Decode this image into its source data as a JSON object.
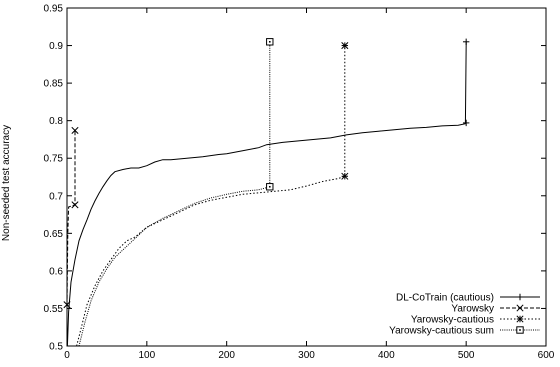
{
  "chart_data": {
    "type": "line",
    "title": "",
    "xlabel": "",
    "ylabel": "Non-seeded test accuracy",
    "xlim": [
      0,
      600
    ],
    "ylim": [
      0.5,
      0.95
    ],
    "x_ticks": [
      0,
      100,
      200,
      300,
      400,
      500,
      600
    ],
    "y_ticks": [
      0.5,
      0.55,
      0.6,
      0.65,
      0.7,
      0.75,
      0.8,
      0.85,
      0.9,
      0.95
    ],
    "x_tick_labels": [
      "0",
      "100",
      "200",
      "300",
      "400",
      "500",
      "600"
    ],
    "y_tick_labels": [
      "0.5",
      "0.55",
      "0.6",
      "0.65",
      "0.7",
      "0.75",
      "0.8",
      "0.85",
      "0.9",
      "0.95"
    ],
    "grid": false,
    "legend_position": "bottom-right",
    "series": [
      {
        "name": "DL-CoTrain (cautious)",
        "dash": "solid",
        "marker": "plus",
        "points": [
          [
            0.5,
            0.5
          ],
          [
            2,
            0.545
          ],
          [
            5,
            0.585
          ],
          [
            10,
            0.615
          ],
          [
            15,
            0.64
          ],
          [
            20,
            0.655
          ],
          [
            25,
            0.668
          ],
          [
            30,
            0.682
          ],
          [
            35,
            0.693
          ],
          [
            40,
            0.703
          ],
          [
            45,
            0.712
          ],
          [
            50,
            0.72
          ],
          [
            55,
            0.727
          ],
          [
            60,
            0.732
          ],
          [
            70,
            0.735
          ],
          [
            80,
            0.737
          ],
          [
            90,
            0.737
          ],
          [
            100,
            0.74
          ],
          [
            110,
            0.745
          ],
          [
            120,
            0.748
          ],
          [
            130,
            0.748
          ],
          [
            140,
            0.749
          ],
          [
            150,
            0.75
          ],
          [
            170,
            0.752
          ],
          [
            190,
            0.755
          ],
          [
            200,
            0.756
          ],
          [
            220,
            0.76
          ],
          [
            240,
            0.764
          ],
          [
            250,
            0.768
          ],
          [
            270,
            0.771
          ],
          [
            290,
            0.773
          ],
          [
            310,
            0.775
          ],
          [
            330,
            0.777
          ],
          [
            350,
            0.781
          ],
          [
            370,
            0.784
          ],
          [
            390,
            0.786
          ],
          [
            410,
            0.788
          ],
          [
            430,
            0.79
          ],
          [
            450,
            0.791
          ],
          [
            470,
            0.793
          ],
          [
            490,
            0.794
          ],
          [
            499,
            0.796
          ],
          [
            500,
            0.905
          ]
        ],
        "end_markers": [
          [
            500,
            0.797
          ],
          [
            500,
            0.905
          ]
        ]
      },
      {
        "name": "Yarowsky",
        "dash": "dashed",
        "marker": "x",
        "points": [
          [
            0,
            0.555
          ],
          [
            1,
            0.65
          ],
          [
            2,
            0.685
          ],
          [
            10,
            0.688
          ],
          [
            10,
            0.787
          ]
        ],
        "end_markers": [
          [
            0,
            0.555
          ],
          [
            10,
            0.688
          ],
          [
            10,
            0.787
          ]
        ]
      },
      {
        "name": "Yarowsky-cautious",
        "dash": "dotted",
        "marker": "star",
        "points": [
          [
            12,
            0.5
          ],
          [
            18,
            0.525
          ],
          [
            25,
            0.555
          ],
          [
            35,
            0.58
          ],
          [
            45,
            0.6
          ],
          [
            55,
            0.615
          ],
          [
            65,
            0.63
          ],
          [
            75,
            0.64
          ],
          [
            85,
            0.645
          ],
          [
            100,
            0.658
          ],
          [
            120,
            0.668
          ],
          [
            140,
            0.678
          ],
          [
            160,
            0.688
          ],
          [
            180,
            0.694
          ],
          [
            200,
            0.698
          ],
          [
            220,
            0.702
          ],
          [
            240,
            0.704
          ],
          [
            260,
            0.706
          ],
          [
            280,
            0.708
          ],
          [
            300,
            0.713
          ],
          [
            320,
            0.719
          ],
          [
            340,
            0.723
          ],
          [
            348,
            0.726
          ],
          [
            348,
            0.9
          ]
        ],
        "end_markers": [
          [
            348,
            0.726
          ],
          [
            348,
            0.9
          ]
        ]
      },
      {
        "name": "Yarowsky-cautious sum",
        "dash": "dotted-fine",
        "marker": "square",
        "points": [
          [
            15,
            0.5
          ],
          [
            22,
            0.53
          ],
          [
            30,
            0.56
          ],
          [
            40,
            0.585
          ],
          [
            50,
            0.603
          ],
          [
            60,
            0.618
          ],
          [
            70,
            0.628
          ],
          [
            85,
            0.643
          ],
          [
            100,
            0.658
          ],
          [
            120,
            0.67
          ],
          [
            140,
            0.68
          ],
          [
            160,
            0.69
          ],
          [
            180,
            0.697
          ],
          [
            200,
            0.702
          ],
          [
            220,
            0.706
          ],
          [
            240,
            0.708
          ],
          [
            254,
            0.712
          ],
          [
            254,
            0.905
          ]
        ],
        "end_markers": [
          [
            254,
            0.712
          ],
          [
            254,
            0.905
          ]
        ]
      }
    ]
  }
}
